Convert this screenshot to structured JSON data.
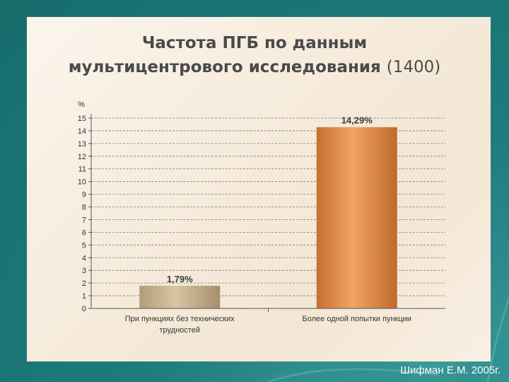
{
  "slide": {
    "title_line1": "Частота ПГБ по данным",
    "title_line2": "мультицентрового исследования",
    "title_count": "(1400)",
    "footer": "Шифман Е.М. 2005г."
  },
  "chart_data": {
    "type": "bar",
    "title": "",
    "ylabel": "%",
    "ylim": [
      0,
      15
    ],
    "yticks": [
      0,
      1,
      2,
      3,
      4,
      5,
      6,
      7,
      8,
      9,
      10,
      11,
      12,
      13,
      14,
      15
    ],
    "grid": true,
    "categories": [
      [
        "При пункциях без технических",
        "трудностей"
      ],
      [
        "Более одной попытки пункции"
      ]
    ],
    "values": [
      1.79,
      14.29
    ],
    "data_labels": [
      "1,79%",
      "14,29%"
    ],
    "colors": [
      "#c9b38e",
      "#e08c4e"
    ]
  }
}
